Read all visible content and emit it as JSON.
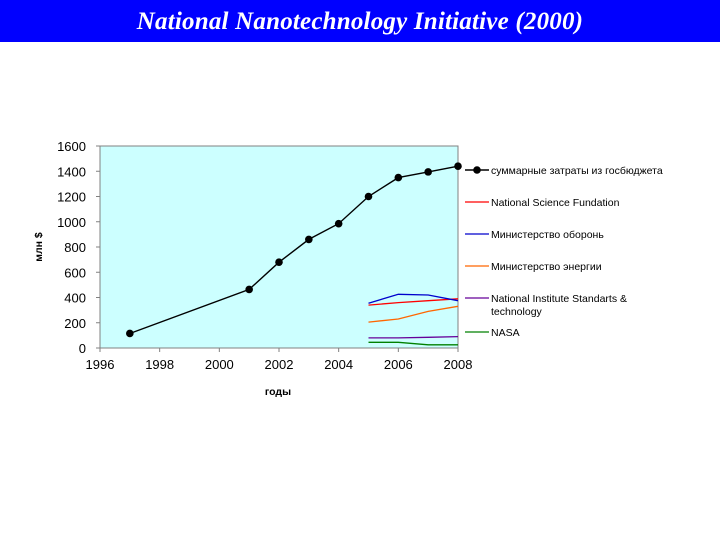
{
  "slide": {
    "title": "National Nanotechnology Initiative (2000)"
  },
  "chart_data": {
    "type": "line",
    "title": "",
    "xlabel": "годы",
    "ylabel": "млн $",
    "xlim": [
      1996,
      2008
    ],
    "ylim": [
      0,
      1600
    ],
    "x_ticks": [
      "1996",
      "1998",
      "2000",
      "2002",
      "2004",
      "2006",
      "2008"
    ],
    "y_ticks": [
      "0",
      "200",
      "400",
      "600",
      "800",
      "1000",
      "1200",
      "1400",
      "1600"
    ],
    "grid": false,
    "legend_position": "right",
    "plot_background": "#ccffff",
    "series": [
      {
        "name": "суммарные затраты из госбюджета",
        "color": "#000000",
        "markers": true,
        "x": [
          1997,
          2001,
          2002,
          2003,
          2004,
          2005,
          2006,
          2007,
          2008
        ],
        "y": [
          115,
          464,
          680,
          860,
          985,
          1200,
          1350,
          1395,
          1440
        ]
      },
      {
        "name": "National Science Fundation",
        "color": "#ff0000",
        "markers": false,
        "x": [
          2005,
          2006,
          2007,
          2008
        ],
        "y": [
          340,
          360,
          375,
          390
        ]
      },
      {
        "name": "Министерство оборонь",
        "color": "#0000cc",
        "markers": false,
        "x": [
          2005,
          2006,
          2007,
          2008
        ],
        "y": [
          355,
          425,
          420,
          375
        ]
      },
      {
        "name": "Министерство энергии",
        "color": "#ff6600",
        "markers": false,
        "x": [
          2005,
          2006,
          2007,
          2008
        ],
        "y": [
          205,
          230,
          290,
          330
        ]
      },
      {
        "name": "National Institute Standarts & technology",
        "color": "#660099",
        "markers": false,
        "x": [
          2005,
          2006,
          2007,
          2008
        ],
        "y": [
          80,
          80,
          85,
          90
        ]
      },
      {
        "name": "NASA",
        "color": "#008000",
        "markers": false,
        "x": [
          2005,
          2006,
          2007,
          2008
        ],
        "y": [
          45,
          45,
          25,
          25
        ]
      }
    ]
  }
}
